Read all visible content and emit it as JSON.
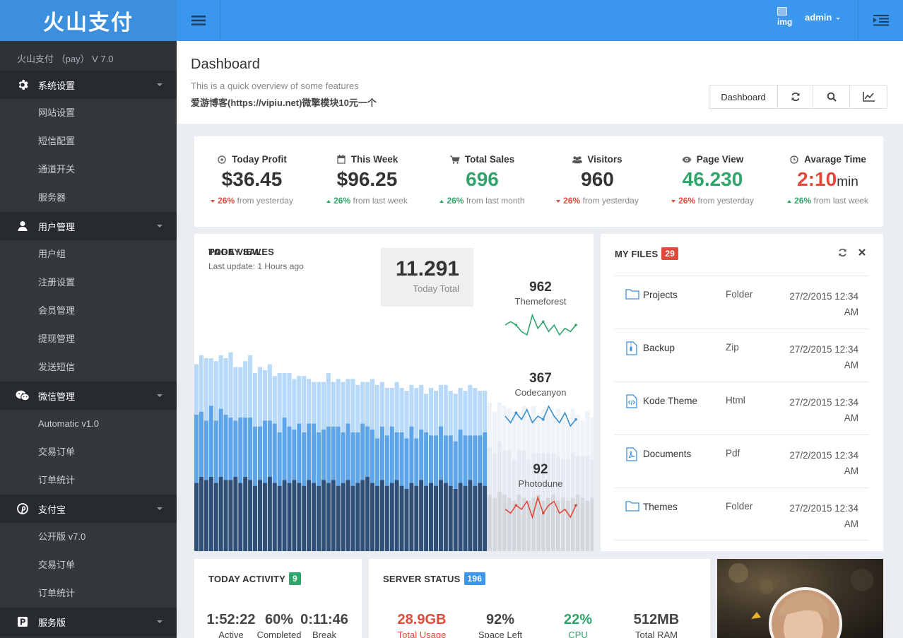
{
  "brand": "火山支付",
  "version": "火山支付 （pay） V 7.0",
  "sidebar": {
    "sections": [
      {
        "label": "系统设置",
        "icon": "gear-icon",
        "items": [
          "网站设置",
          "短信配置",
          "通道开关",
          "服务器"
        ]
      },
      {
        "label": "用户管理",
        "icon": "user-icon",
        "items": [
          "用户组",
          "注册设置",
          "会员管理",
          "提现管理",
          "发送短信"
        ]
      },
      {
        "label": "微信管理",
        "icon": "wechat-icon",
        "items": [
          "Automatic v1.0",
          "交易订单",
          "订单统计"
        ]
      },
      {
        "label": "支付宝",
        "icon": "pinterest-icon",
        "items": [
          "公开版 v7.0",
          "交易订单",
          "订单统计"
        ]
      },
      {
        "label": "服务版",
        "icon": "product-p-icon",
        "items": []
      }
    ]
  },
  "topbar": {
    "avatar_alt": "img",
    "username": "admin"
  },
  "header": {
    "title": "Dashboard",
    "subtitle": "This is a quick overview of some features",
    "note": "爱游博客(https://vipiu.net)微擎模块10元一个",
    "dashboard_button": "Dashboard"
  },
  "stats": [
    {
      "label": "Today Profit",
      "icon": "clock-circle-icon",
      "value": "$36.45",
      "unit": "",
      "color": "#333333",
      "trend": "down",
      "pct": "26%",
      "period": "from yesterday"
    },
    {
      "label": "This Week",
      "icon": "calendar-icon",
      "value": "$96.25",
      "unit": "",
      "color": "#333333",
      "trend": "up",
      "pct": "26%",
      "period": "from last week"
    },
    {
      "label": "Total Sales",
      "icon": "cart-icon",
      "value": "696",
      "unit": "",
      "color": "#2fa56b",
      "trend": "up",
      "pct": "26%",
      "period": "from last month"
    },
    {
      "label": "Visitors",
      "icon": "users-icon",
      "value": "960",
      "unit": "",
      "color": "#333333",
      "trend": "down",
      "pct": "26%",
      "period": "from yesterday"
    },
    {
      "label": "Page View",
      "icon": "eye-icon",
      "value": "46.230",
      "unit": "",
      "color": "#2fa56b",
      "trend": "down",
      "pct": "26%",
      "period": "from yesterday"
    },
    {
      "label": "Avarage Time",
      "icon": "clock-icon",
      "value": "2:10",
      "unit": "min",
      "color": "#e04a3a",
      "trend": "up",
      "pct": "26%",
      "period": "from last week"
    }
  ],
  "sales": {
    "title": "TODAY SALES",
    "last_update": "Last update: 1 Hours ago",
    "total": "11.291",
    "total_label": "Today Total",
    "page_view_title": "PAGE VIEW",
    "page_views": [
      {
        "value": "962",
        "label": "Themeforest",
        "color": "#2fa56b"
      },
      {
        "value": "367",
        "label": "Codecanyon",
        "color": "#3b8fcf"
      },
      {
        "value": "92",
        "label": "Photodune",
        "color": "#e04a3a"
      }
    ]
  },
  "chart_data": {
    "type": "bar",
    "stacked": true,
    "series": [
      {
        "values": [
          23,
          25,
          24,
          25,
          23,
          25,
          24,
          24,
          25,
          23,
          25,
          24,
          22,
          24,
          23,
          25,
          23,
          22,
          24,
          23,
          24,
          23,
          22,
          24,
          23,
          22,
          24,
          23,
          24,
          22,
          23,
          24,
          22,
          23,
          24,
          25,
          23,
          22,
          24,
          22,
          23,
          24,
          22,
          21,
          23,
          22,
          24,
          22,
          23,
          22,
          24,
          23,
          22,
          21,
          23,
          22,
          24,
          22,
          23,
          22,
          19,
          18,
          20,
          19,
          18,
          17,
          19,
          18,
          17,
          18,
          19,
          17,
          18,
          19,
          17,
          18,
          17,
          18,
          19,
          18,
          17,
          18,
          19,
          17,
          18,
          17,
          18,
          19,
          17,
          18
        ]
      },
      {
        "values": [
          23,
          22,
          20,
          24,
          21,
          23,
          22,
          21,
          19,
          22,
          20,
          21,
          20,
          18,
          21,
          19,
          20,
          18,
          21,
          19,
          17,
          20,
          18,
          19,
          20,
          18,
          17,
          19,
          18,
          20,
          17,
          19,
          18,
          17,
          19,
          17,
          18,
          16,
          18,
          17,
          19,
          16,
          18,
          17,
          19,
          16,
          17,
          18,
          16,
          17,
          18,
          16,
          17,
          16,
          18,
          17,
          15,
          17,
          16,
          18,
          16,
          15,
          17,
          15,
          16,
          14,
          15,
          16,
          14,
          15,
          14,
          16,
          15,
          14,
          15,
          13,
          14,
          15,
          13,
          14,
          15,
          13,
          14,
          15,
          13,
          14,
          15,
          13,
          14,
          15
        ]
      },
      {
        "values": [
          17,
          19,
          21,
          16,
          20,
          18,
          19,
          22,
          18,
          17,
          19,
          21,
          18,
          20,
          17,
          19,
          16,
          20,
          15,
          18,
          17,
          16,
          19,
          15,
          14,
          17,
          16,
          18,
          15,
          16,
          17,
          15,
          18,
          16,
          14,
          15,
          17,
          18,
          15,
          16,
          13,
          17,
          15,
          16,
          14,
          17,
          15,
          13,
          16,
          15,
          14,
          17,
          15,
          16,
          14,
          15,
          17,
          16,
          15,
          14,
          15,
          14,
          13,
          15,
          14,
          16,
          13,
          15,
          14,
          16,
          12,
          15,
          14,
          13,
          16,
          14,
          13,
          15,
          14,
          12,
          15,
          14,
          13,
          16,
          14,
          13,
          15,
          14,
          13,
          15
        ]
      }
    ],
    "sparklines": [
      [
        5,
        6,
        5,
        3,
        2,
        8,
        4,
        6,
        3,
        5,
        2,
        4,
        3,
        5
      ],
      [
        4,
        2,
        5,
        3,
        6,
        2,
        4,
        3,
        7,
        4,
        2,
        5,
        1,
        3
      ],
      [
        3,
        2,
        4,
        3,
        5,
        1,
        6,
        2,
        4,
        5,
        2,
        3,
        1,
        4
      ]
    ]
  },
  "files": {
    "title": "MY FILES",
    "count": "29",
    "badge_color": "#e04a3a",
    "rows": [
      {
        "icon": "folder-icon",
        "name": "Projects",
        "type": "Folder",
        "date1": "27/2/2015 12:34",
        "date2": "AM"
      },
      {
        "icon": "zip-file-icon",
        "name": "Backup",
        "type": "Zip",
        "date1": "27/2/2015 12:34",
        "date2": "AM"
      },
      {
        "icon": "code-file-icon",
        "name": "Kode Theme",
        "type": "Html",
        "date1": "27/2/2015 12:34",
        "date2": "AM"
      },
      {
        "icon": "pdf-file-icon",
        "name": "Documents",
        "type": "Pdf",
        "date1": "27/2/2015 12:34",
        "date2": "AM"
      },
      {
        "icon": "folder-icon",
        "name": "Themes",
        "type": "Folder",
        "date1": "27/2/2015 12:34",
        "date2": "AM"
      }
    ]
  },
  "activity": {
    "title": "TODAY ACTIVITY",
    "count": "9",
    "badge_color": "#2fa56b",
    "metrics": [
      {
        "value": "1:52:22",
        "label": "Active"
      },
      {
        "value": "60%",
        "label": "Completed"
      },
      {
        "value": "0:11:46",
        "label": "Break"
      }
    ]
  },
  "server": {
    "title": "SERVER STATUS",
    "count": "196",
    "badge_color": "#3b97ee",
    "metrics": [
      {
        "value": "28.9GB",
        "label": "Total Usage",
        "color": "#e04a3a"
      },
      {
        "value": "92%",
        "label": "Space Left",
        "color": "#444444"
      },
      {
        "value": "22%",
        "label": "CPU",
        "color": "#2fa56b"
      },
      {
        "value": "512MB",
        "label": "Total RAM",
        "color": "#444444"
      }
    ]
  }
}
